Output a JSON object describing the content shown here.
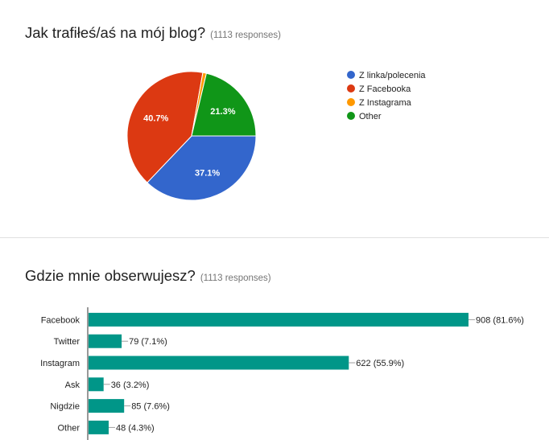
{
  "chart_data": [
    {
      "type": "pie",
      "title": "Jak trafiłeś/aś na mój blog?",
      "responses": "(1113 responses)",
      "slices": [
        {
          "name": "Z linka/polecenia",
          "value": 37.1,
          "label": "37.1%",
          "color": "#3366cc"
        },
        {
          "name": "Z Facebooka",
          "value": 40.7,
          "label": "40.7%",
          "color": "#dc3912"
        },
        {
          "name": "Z Instagrama",
          "value": 0.9,
          "label": "",
          "color": "#ff9900"
        },
        {
          "name": "Other",
          "value": 21.3,
          "label": "21.3%",
          "color": "#109618"
        }
      ],
      "legend": "right"
    },
    {
      "type": "bar",
      "orientation": "horizontal",
      "title": "Gdzie mnie obserwujesz?",
      "responses": "(1113 responses)",
      "categories": [
        "Facebook",
        "Twitter",
        "Instagram",
        "Ask",
        "Nigdzie",
        "Other"
      ],
      "values": [
        908,
        79,
        622,
        36,
        85,
        48
      ],
      "labels": [
        "908 (81.6%)",
        "79 (7.1%)",
        "622 (55.9%)",
        "36 (3.2%)",
        "85 (7.6%)",
        "48 (4.3%)"
      ],
      "color": "#009688"
    }
  ]
}
